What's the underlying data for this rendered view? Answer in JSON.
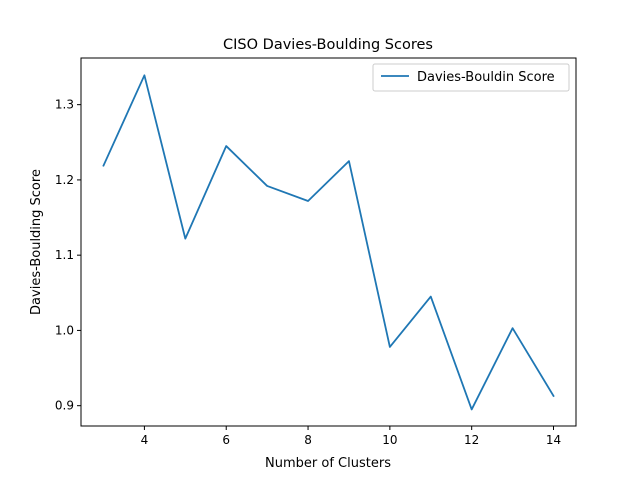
{
  "chart_data": {
    "type": "line",
    "title": "CISO Davies-Boulding Scores",
    "xlabel": "Number of Clusters",
    "ylabel": "Davies-Boulding Score",
    "xlim": [
      2.45,
      14.55
    ],
    "ylim": [
      0.873,
      1.362
    ],
    "xticks": [
      4,
      6,
      8,
      10,
      12,
      14
    ],
    "yticks": [
      0.9,
      1.0,
      1.1,
      1.2,
      1.3
    ],
    "ytick_labels": [
      "0.9",
      "1.0",
      "1.1",
      "1.2",
      "1.3"
    ],
    "grid": false,
    "legend_position": "top-right",
    "series": [
      {
        "name": "Davies-Bouldin Score",
        "color": "#1f77b4",
        "x": [
          3,
          4,
          5,
          6,
          7,
          8,
          9,
          10,
          11,
          12,
          13,
          14
        ],
        "y": [
          1.219,
          1.339,
          1.122,
          1.245,
          1.192,
          1.172,
          1.225,
          0.978,
          1.045,
          0.895,
          1.003,
          0.913
        ]
      }
    ]
  }
}
